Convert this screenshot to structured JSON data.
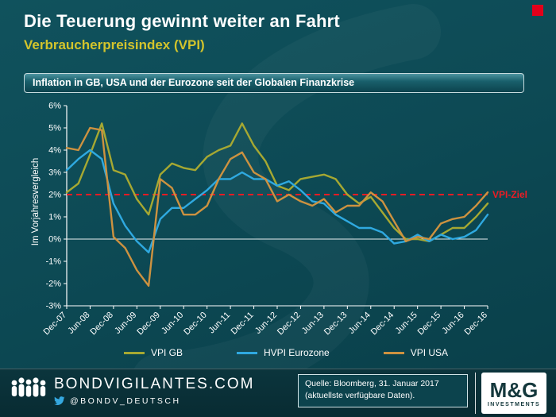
{
  "page": {
    "title": "Die Teuerung gewinnt weiter an Fahrt",
    "subtitle": "Verbraucherpreisindex  (VPI)",
    "chart_header": "Inflation in GB, USA und der Eurozone seit der Globalen Finanzkrise"
  },
  "colors": {
    "background": "#0d4a55",
    "subtitle_gold": "#d3c42c",
    "target_red": "#ed1c24",
    "header_bar": "#19606c",
    "twitter_blue": "#35a8e0"
  },
  "chart_data": {
    "type": "line",
    "title": "Inflation in GB, USA und der Eurozone seit der Globalen Finanzkrise",
    "xlabel": "",
    "ylabel": "Im Vorjahresvergleich",
    "ylim": [
      -3,
      6
    ],
    "yticks": [
      6,
      5,
      4,
      3,
      2,
      1,
      0,
      -1,
      -2,
      -3
    ],
    "ytick_suffix": "%",
    "grid": false,
    "legend_position": "bottom",
    "xtick_every": 2,
    "x": [
      "Dec-07",
      "Mar-08",
      "Jun-08",
      "Sep-08",
      "Dec-08",
      "Mar-09",
      "Jun-09",
      "Sep-09",
      "Dec-09",
      "Mar-10",
      "Jun-10",
      "Sep-10",
      "Dec-10",
      "Mar-11",
      "Jun-11",
      "Sep-11",
      "Dec-11",
      "Mar-12",
      "Jun-12",
      "Sep-12",
      "Dec-12",
      "Mar-13",
      "Jun-13",
      "Sep-13",
      "Dec-13",
      "Mar-14",
      "Jun-14",
      "Sep-14",
      "Dec-14",
      "Mar-15",
      "Jun-15",
      "Sep-15",
      "Dec-15",
      "Mar-16",
      "Jun-16",
      "Sep-16",
      "Dec-16"
    ],
    "series": [
      {
        "name": "VPI GB",
        "color": "#a6a832",
        "values": [
          2.1,
          2.5,
          3.8,
          5.2,
          3.1,
          2.9,
          1.8,
          1.1,
          2.9,
          3.4,
          3.2,
          3.1,
          3.7,
          4.0,
          4.2,
          5.2,
          4.2,
          3.5,
          2.4,
          2.2,
          2.7,
          2.8,
          2.9,
          2.7,
          2.0,
          1.6,
          1.9,
          1.2,
          0.5,
          0.0,
          0.0,
          -0.1,
          0.2,
          0.5,
          0.5,
          1.0,
          1.6
        ]
      },
      {
        "name": "HVPI Eurozone",
        "color": "#2fa9e0",
        "values": [
          3.1,
          3.6,
          4.0,
          3.6,
          1.6,
          0.6,
          -0.1,
          -0.6,
          0.9,
          1.4,
          1.4,
          1.8,
          2.2,
          2.7,
          2.7,
          3.0,
          2.7,
          2.7,
          2.4,
          2.6,
          2.2,
          1.7,
          1.6,
          1.1,
          0.8,
          0.5,
          0.5,
          0.3,
          -0.2,
          -0.1,
          0.2,
          -0.1,
          0.2,
          0.0,
          0.1,
          0.4,
          1.1
        ]
      },
      {
        "name": "VPI USA",
        "color": "#cd9240",
        "values": [
          4.1,
          4.0,
          5.0,
          4.9,
          0.1,
          -0.4,
          -1.4,
          -2.1,
          2.7,
          2.3,
          1.1,
          1.1,
          1.5,
          2.7,
          3.6,
          3.9,
          3.0,
          2.7,
          1.7,
          2.0,
          1.7,
          1.5,
          1.8,
          1.2,
          1.5,
          1.5,
          2.1,
          1.7,
          0.8,
          -0.1,
          0.1,
          0.0,
          0.7,
          0.9,
          1.0,
          1.5,
          2.1
        ]
      }
    ],
    "reference_line": {
      "value": 2,
      "label": "VPI-Ziel",
      "color": "#ed1c24",
      "style": "dashed"
    }
  },
  "footer": {
    "site": "BONDVIGILANTES.COM",
    "twitter": "@BONDV_DEUTSCH",
    "source_line1": "Quelle: Bloomberg, 31. Januar 2017",
    "source_line2": "(aktuellste verfügbare Daten).",
    "logo_text": "M&G",
    "logo_sub": "INVESTMENTS"
  }
}
